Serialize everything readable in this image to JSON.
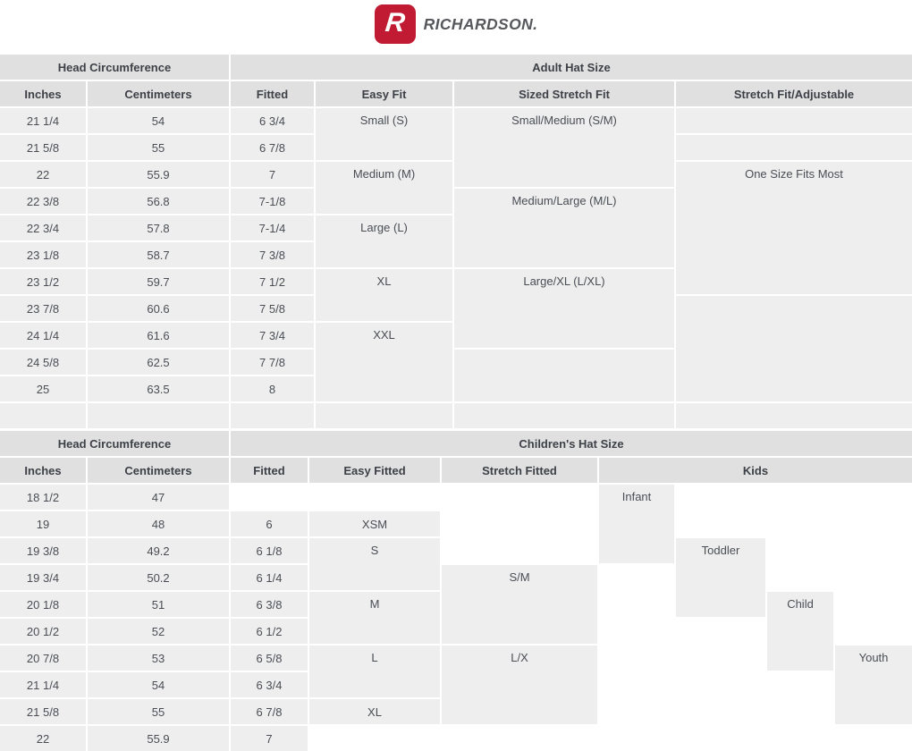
{
  "brand": {
    "logo_letter": "R",
    "wordmark": "RICHARDSON."
  },
  "colors": {
    "brand_red": "#c01b32",
    "wordmark_gray": "#56585c",
    "header_bg": "#e0e0e0",
    "cell_bg": "#eeeeee",
    "header_text": "#3d4147",
    "text_color": "#4a4e54"
  },
  "adult_table": {
    "cells": [
      {
        "kind": "group",
        "text": "Head Circumference",
        "row": 1,
        "col": 1,
        "colspan": 2
      },
      {
        "kind": "group",
        "text": "Adult Hat Size",
        "row": 1,
        "col": 3,
        "colspan": 4
      },
      {
        "kind": "col",
        "text": "Inches",
        "row": 2,
        "col": 1
      },
      {
        "kind": "col",
        "text": "Centimeters",
        "row": 2,
        "col": 2
      },
      {
        "kind": "col",
        "text": "Fitted",
        "row": 2,
        "col": 3
      },
      {
        "kind": "col",
        "text": "Easy Fit",
        "row": 2,
        "col": 4
      },
      {
        "kind": "col",
        "text": "Sized Stretch Fit",
        "row": 2,
        "col": 5
      },
      {
        "kind": "col",
        "text": "Stretch Fit/Adjustable",
        "row": 2,
        "col": 6
      },
      {
        "text": "21 1/4",
        "row": 3,
        "col": 1
      },
      {
        "text": "54",
        "row": 3,
        "col": 2
      },
      {
        "text": "6 3/4",
        "row": 3,
        "col": 3
      },
      {
        "text": "Small (S)",
        "row": 3,
        "col": 4,
        "rowspan": 2
      },
      {
        "text": "Small/Medium (S/M)",
        "row": 3,
        "col": 5,
        "rowspan": 3
      },
      {
        "text": "",
        "row": 3,
        "col": 6
      },
      {
        "text": "21 5/8",
        "row": 4,
        "col": 1
      },
      {
        "text": "55",
        "row": 4,
        "col": 2
      },
      {
        "text": "6 7/8",
        "row": 4,
        "col": 3
      },
      {
        "text": "",
        "row": 4,
        "col": 6
      },
      {
        "text": "22",
        "row": 5,
        "col": 1
      },
      {
        "text": "55.9",
        "row": 5,
        "col": 2
      },
      {
        "text": "7",
        "row": 5,
        "col": 3
      },
      {
        "text": "Medium (M)",
        "row": 5,
        "col": 4,
        "rowspan": 2
      },
      {
        "text": "One Size Fits Most",
        "row": 5,
        "col": 6,
        "rowspan": 5
      },
      {
        "text": "22 3/8",
        "row": 6,
        "col": 1
      },
      {
        "text": "56.8",
        "row": 6,
        "col": 2
      },
      {
        "text": "7-1/8",
        "row": 6,
        "col": 3
      },
      {
        "text": "Medium/Large (M/L)",
        "row": 6,
        "col": 5,
        "rowspan": 3
      },
      {
        "text": "22 3/4",
        "row": 7,
        "col": 1
      },
      {
        "text": "57.8",
        "row": 7,
        "col": 2
      },
      {
        "text": "7-1/4",
        "row": 7,
        "col": 3
      },
      {
        "text": "Large (L)",
        "row": 7,
        "col": 4,
        "rowspan": 2
      },
      {
        "text": "23 1/8",
        "row": 8,
        "col": 1
      },
      {
        "text": "58.7",
        "row": 8,
        "col": 2
      },
      {
        "text": "7 3/8",
        "row": 8,
        "col": 3
      },
      {
        "text": "23 1/2",
        "row": 9,
        "col": 1
      },
      {
        "text": "59.7",
        "row": 9,
        "col": 2
      },
      {
        "text": "7 1/2",
        "row": 9,
        "col": 3
      },
      {
        "text": "XL",
        "row": 9,
        "col": 4,
        "rowspan": 2
      },
      {
        "text": "Large/XL (L/XL)",
        "row": 9,
        "col": 5,
        "rowspan": 3
      },
      {
        "text": "23 7/8",
        "row": 10,
        "col": 1
      },
      {
        "text": "60.6",
        "row": 10,
        "col": 2
      },
      {
        "text": "7 5/8",
        "row": 10,
        "col": 3
      },
      {
        "text": "",
        "row": 10,
        "col": 6,
        "rowspan": 4
      },
      {
        "text": "24 1/4",
        "row": 11,
        "col": 1
      },
      {
        "text": "61.6",
        "row": 11,
        "col": 2
      },
      {
        "text": "7 3/4",
        "row": 11,
        "col": 3
      },
      {
        "text": "XXL",
        "row": 11,
        "col": 4,
        "rowspan": 3
      },
      {
        "text": "24 5/8",
        "row": 12,
        "col": 1
      },
      {
        "text": "62.5",
        "row": 12,
        "col": 2
      },
      {
        "text": "7 7/8",
        "row": 12,
        "col": 3
      },
      {
        "text": "",
        "row": 12,
        "col": 5,
        "rowspan": 2
      },
      {
        "text": "25",
        "row": 13,
        "col": 1
      },
      {
        "text": "63.5",
        "row": 13,
        "col": 2
      },
      {
        "text": "8",
        "row": 13,
        "col": 3
      },
      {
        "text": "",
        "row": 14,
        "col": 1
      },
      {
        "text": "",
        "row": 14,
        "col": 2
      },
      {
        "text": "",
        "row": 14,
        "col": 3
      },
      {
        "text": "",
        "row": 14,
        "col": 4
      },
      {
        "text": "",
        "row": 14,
        "col": 5
      },
      {
        "text": "",
        "row": 14,
        "col": 6
      }
    ]
  },
  "children_table": {
    "cells": [
      {
        "kind": "group",
        "text": "Head Circumference",
        "row": 1,
        "col": 1,
        "colspan": 2
      },
      {
        "kind": "group",
        "text": "Children's Hat Size",
        "row": 1,
        "col": 3,
        "colspan": 7
      },
      {
        "kind": "col",
        "text": "Inches",
        "row": 2,
        "col": 1
      },
      {
        "kind": "col",
        "text": "Centimeters",
        "row": 2,
        "col": 2
      },
      {
        "kind": "col",
        "text": "Fitted",
        "row": 2,
        "col": 3
      },
      {
        "kind": "col",
        "text": "Easy Fitted",
        "row": 2,
        "col": 4
      },
      {
        "kind": "col",
        "text": "Stretch Fitted",
        "row": 2,
        "col": 5
      },
      {
        "kind": "col",
        "text": "Kids",
        "row": 2,
        "col": 6,
        "colspan": 4
      },
      {
        "text": "18 1/2",
        "row": 3,
        "col": 1
      },
      {
        "text": "47",
        "row": 3,
        "col": 2
      },
      {
        "text": "Infant",
        "row": 3,
        "col": 6,
        "rowspan": 3
      },
      {
        "text": "19",
        "row": 4,
        "col": 1
      },
      {
        "text": "48",
        "row": 4,
        "col": 2
      },
      {
        "text": "6",
        "row": 4,
        "col": 3
      },
      {
        "text": "XSM",
        "row": 4,
        "col": 4
      },
      {
        "text": "19 3/8",
        "row": 5,
        "col": 1
      },
      {
        "text": "49.2",
        "row": 5,
        "col": 2
      },
      {
        "text": "6 1/8",
        "row": 5,
        "col": 3
      },
      {
        "text": "S",
        "row": 5,
        "col": 4,
        "rowspan": 2
      },
      {
        "text": "Toddler",
        "row": 5,
        "col": 7,
        "rowspan": 3
      },
      {
        "text": "19 3/4",
        "row": 6,
        "col": 1
      },
      {
        "text": "50.2",
        "row": 6,
        "col": 2
      },
      {
        "text": "6 1/4",
        "row": 6,
        "col": 3
      },
      {
        "text": "S/M",
        "row": 6,
        "col": 5,
        "rowspan": 3
      },
      {
        "text": "20 1/8",
        "row": 7,
        "col": 1
      },
      {
        "text": "51",
        "row": 7,
        "col": 2
      },
      {
        "text": "6 3/8",
        "row": 7,
        "col": 3
      },
      {
        "text": "M",
        "row": 7,
        "col": 4,
        "rowspan": 2
      },
      {
        "text": "Child",
        "row": 7,
        "col": 8,
        "rowspan": 3
      },
      {
        "text": "20 1/2",
        "row": 8,
        "col": 1
      },
      {
        "text": "52",
        "row": 8,
        "col": 2
      },
      {
        "text": "6 1/2",
        "row": 8,
        "col": 3
      },
      {
        "text": "20 7/8",
        "row": 9,
        "col": 1
      },
      {
        "text": "53",
        "row": 9,
        "col": 2
      },
      {
        "text": "6 5/8",
        "row": 9,
        "col": 3
      },
      {
        "text": "L",
        "row": 9,
        "col": 4,
        "rowspan": 2
      },
      {
        "text": "L/X",
        "row": 9,
        "col": 5,
        "rowspan": 3
      },
      {
        "text": "Youth",
        "row": 9,
        "col": 9,
        "rowspan": 3
      },
      {
        "text": "21 1/4",
        "row": 10,
        "col": 1
      },
      {
        "text": "54",
        "row": 10,
        "col": 2
      },
      {
        "text": "6 3/4",
        "row": 10,
        "col": 3
      },
      {
        "text": "21 5/8",
        "row": 11,
        "col": 1
      },
      {
        "text": "55",
        "row": 11,
        "col": 2
      },
      {
        "text": "6 7/8",
        "row": 11,
        "col": 3
      },
      {
        "text": "XL",
        "row": 11,
        "col": 4
      },
      {
        "text": "22",
        "row": 12,
        "col": 1
      },
      {
        "text": "55.9",
        "row": 12,
        "col": 2
      },
      {
        "text": "7",
        "row": 12,
        "col": 3
      }
    ]
  }
}
